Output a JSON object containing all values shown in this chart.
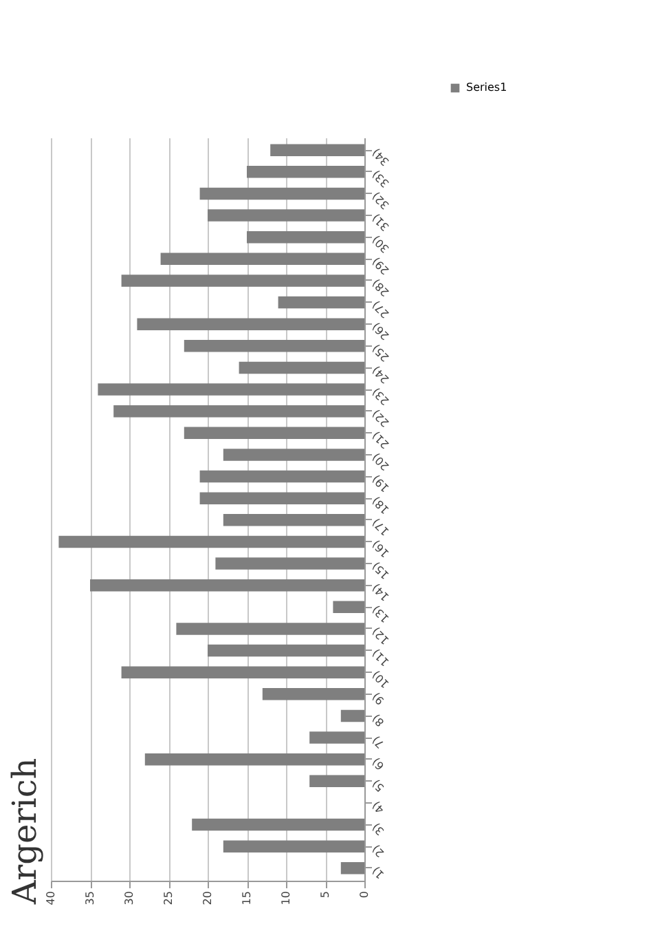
{
  "chart_data": {
    "type": "bar",
    "orientation": "horizontal",
    "title": "Argerich",
    "categories": [
      "34)",
      "33)",
      "32)",
      "31)",
      "30)",
      "29)",
      "28)",
      "27)",
      "26)",
      "25)",
      "24)",
      "23)",
      "22)",
      "21)",
      "20)",
      "19)",
      "18)",
      "17)",
      "16)",
      "15)",
      "14)",
      "13)",
      "12)",
      "11)",
      "10)",
      "9)",
      "8)",
      "7)",
      "6)",
      "5)",
      "4)",
      "3)",
      "2)",
      "1)"
    ],
    "series": [
      {
        "name": "Series1",
        "color": "#7f7f7f",
        "values": [
          12,
          15,
          21,
          20,
          15,
          26,
          31,
          11,
          29,
          23,
          16,
          34,
          32,
          23,
          18,
          21,
          21,
          18,
          39,
          19,
          35,
          4,
          24,
          20,
          31,
          13,
          3,
          7,
          28,
          7,
          0,
          22,
          18,
          3
        ]
      }
    ],
    "xlim": [
      40,
      0
    ],
    "xticks": [
      40,
      35,
      30,
      25,
      20,
      15,
      10,
      5,
      0
    ],
    "grid": "x",
    "legend": "top right"
  }
}
